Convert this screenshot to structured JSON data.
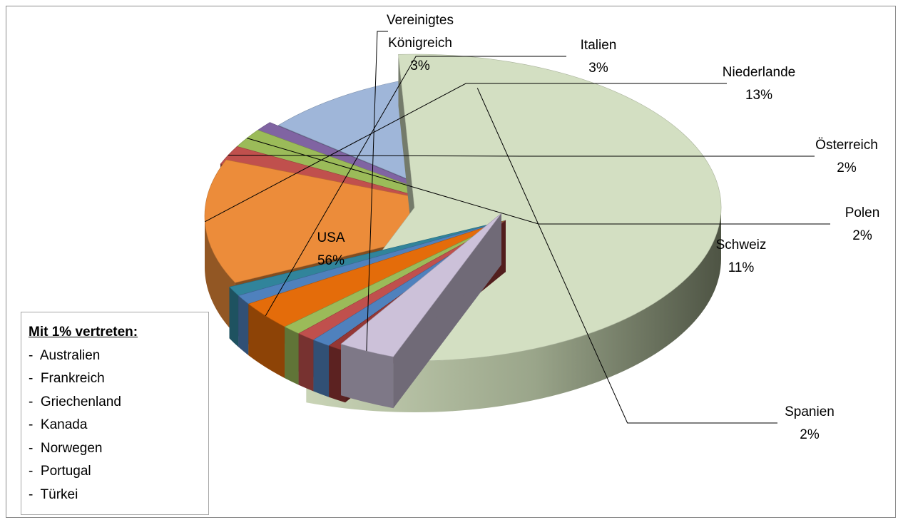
{
  "chart_data": {
    "type": "pie",
    "style": "3d-exploded",
    "slices": [
      {
        "label": "USA",
        "value": 56,
        "display": "56%",
        "color": "#d3dfc2"
      },
      {
        "label": "Vereinigtes Königreich",
        "value": 3,
        "display": "3%",
        "color": "#ccc1d9"
      },
      {
        "label": "Australien",
        "value": 1,
        "display": "",
        "color": "#953735"
      },
      {
        "label": "Frankreich",
        "value": 1,
        "display": "",
        "color": "#4f81bd"
      },
      {
        "label": "Griechenland",
        "value": 1,
        "display": "",
        "color": "#c0504d"
      },
      {
        "label": "Kanada",
        "value": 1,
        "display": "",
        "color": "#9bbb59"
      },
      {
        "label": "Italien",
        "value": 3,
        "display": "3%",
        "color": "#e46c0a"
      },
      {
        "label": "Norwegen",
        "value": 1,
        "display": "",
        "color": "#4f81bd"
      },
      {
        "label": "Portugal",
        "value": 1,
        "display": "",
        "color": "#31849b"
      },
      {
        "label": "Niederlande",
        "value": 13,
        "display": "13%",
        "color": "#ec8c3a"
      },
      {
        "label": "Österreich",
        "value": 2,
        "display": "2%",
        "color": "#c0504d"
      },
      {
        "label": "Polen",
        "value": 2,
        "display": "2%",
        "color": "#9bbb59"
      },
      {
        "label": "Türkei",
        "value": 1,
        "display": "",
        "color": "#8064a2"
      },
      {
        "label": "Schweiz",
        "value": 11,
        "display": "11%",
        "color": "#9fb6d9"
      },
      {
        "label": "Spanien",
        "value": 2,
        "display": "2%",
        "color": "#9bbb59"
      }
    ]
  },
  "legend": {
    "title": "Mit 1% vertreten:",
    "items": [
      "Australien",
      "Frankreich",
      "Griechenland",
      "Kanada",
      "Norwegen",
      "Portugal",
      "Türkei"
    ]
  }
}
